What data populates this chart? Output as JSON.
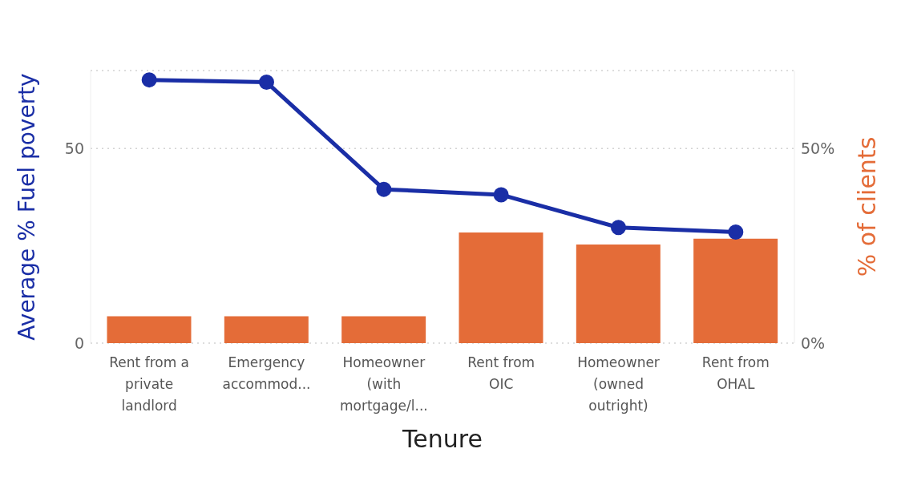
{
  "chart_data": {
    "type": "bar",
    "xlabel": "Tenure",
    "ylabel": "Average % Fuel poverty",
    "y2label": "% of clients",
    "categories": [
      "Rent from a private landlord",
      "Emergency accommod...",
      "Homeowner (with mortgage/l...",
      "Rent from OIC",
      "Homeowner (owned outright)",
      "Rent from OHAL"
    ],
    "series": [
      {
        "axis": "y2",
        "color": "#e46c38",
        "values": [
          6.9,
          6.9,
          6.9,
          28.4,
          25.3,
          26.8
        ]
      },
      {
        "type": "line",
        "axis": "y",
        "color": "#1a2ea6",
        "values": [
          67.6,
          67.0,
          39.5,
          38.1,
          29.7,
          28.5
        ]
      }
    ],
    "ylim": [
      0,
      70
    ],
    "yticks": [
      0,
      50
    ],
    "y2lim": [
      0,
      70
    ],
    "y2ticks": [
      {
        "value": 0,
        "label": "0%"
      },
      {
        "value": 50,
        "label": "50%"
      }
    ],
    "grid": "y",
    "legend": false,
    "marker": "circle",
    "line_style": "solid"
  }
}
